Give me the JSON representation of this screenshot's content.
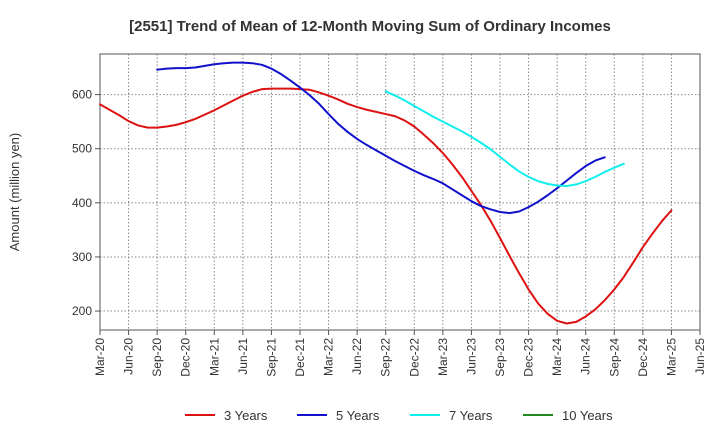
{
  "chart_data": {
    "type": "line",
    "title": "[2551]  Trend of Mean of 12-Month Moving Sum of Ordinary Incomes",
    "xlabel": "",
    "ylabel": "Amount (million yen)",
    "ylim": [
      165,
      675
    ],
    "yticks": [
      200,
      300,
      400,
      500,
      600
    ],
    "xticks": [
      "Mar-20",
      "Jun-20",
      "Sep-20",
      "Dec-20",
      "Mar-21",
      "Jun-21",
      "Sep-21",
      "Dec-21",
      "Mar-22",
      "Jun-22",
      "Sep-22",
      "Dec-22",
      "Mar-23",
      "Jun-23",
      "Sep-23",
      "Dec-23",
      "Mar-24",
      "Jun-24",
      "Sep-24",
      "Dec-24",
      "Mar-25",
      "Jun-25"
    ],
    "grid": true,
    "legend_position": "bottom",
    "series": [
      {
        "name": "3 Years",
        "color": "#dd1111",
        "start_index": 0,
        "values": [
          582,
          572,
          562,
          551,
          543,
          539,
          539,
          541,
          544,
          549,
          555,
          563,
          571,
          580,
          589,
          598,
          605,
          610,
          611,
          611,
          611,
          610,
          609,
          604,
          598,
          591,
          583,
          577,
          572,
          568,
          564,
          560,
          552,
          541,
          526,
          510,
          492,
          471,
          448,
          422,
          396,
          367,
          335,
          302,
          270,
          240,
          214,
          195,
          182,
          177,
          180,
          190,
          203,
          220,
          240,
          263,
          290,
          318,
          343,
          366,
          386
        ]
      },
      {
        "name": "5 Years",
        "color": "#1111cc",
        "start_index": 6,
        "values": [
          646,
          648,
          649,
          649,
          650,
          653,
          656,
          658,
          659,
          659,
          658,
          655,
          648,
          638,
          626,
          613,
          599,
          583,
          564,
          546,
          531,
          518,
          507,
          497,
          487,
          477,
          468,
          459,
          451,
          444,
          436,
          425,
          414,
          403,
          394,
          388,
          383,
          381,
          384,
          392,
          402,
          414,
          427,
          441,
          455,
          468,
          478,
          484
        ]
      },
      {
        "name": "7 Years",
        "color": "#11eeee",
        "start_index": 30,
        "values": [
          606,
          598,
          589,
          579,
          569,
          559,
          550,
          541,
          532,
          522,
          511,
          499,
          485,
          471,
          458,
          448,
          440,
          435,
          432,
          431,
          434,
          440,
          448,
          457,
          465,
          472
        ]
      },
      {
        "name": "10 Years",
        "color": "#228822",
        "start_index": 0,
        "values": []
      }
    ]
  }
}
